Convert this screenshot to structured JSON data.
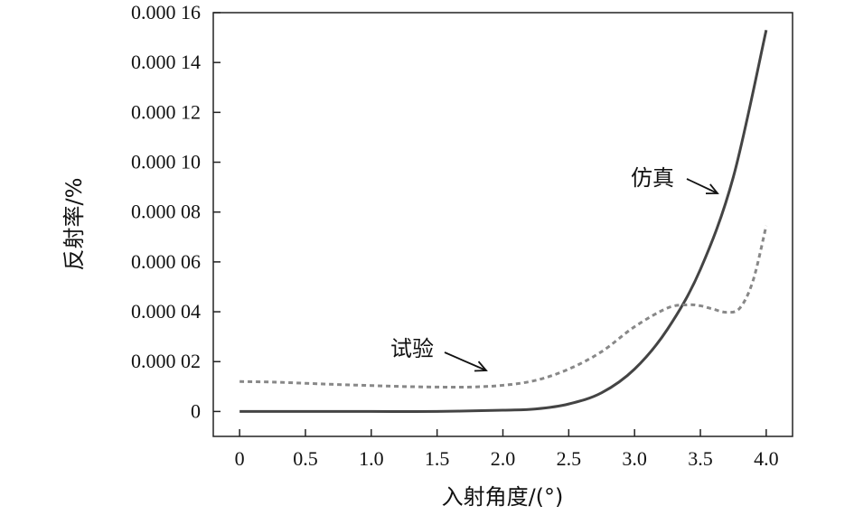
{
  "chart_data": {
    "type": "line",
    "xlabel": "入射角度/(°)",
    "ylabel": "反射率/%",
    "xlim": [
      -0.2,
      4.2
    ],
    "ylim": [
      -1e-05,
      0.00016
    ],
    "x_ticks": [
      0,
      0.5,
      1.0,
      1.5,
      2.0,
      2.5,
      3.0,
      3.5,
      4.0
    ],
    "x_tick_labels": [
      "0",
      "0.5",
      "1.0",
      "1.5",
      "2.0",
      "2.5",
      "3.0",
      "3.5",
      "4.0"
    ],
    "y_ticks": [
      0,
      2e-05,
      4e-05,
      6e-05,
      8e-05,
      0.0001,
      0.00012,
      0.00014,
      0.00016
    ],
    "y_tick_labels": [
      "0",
      "0.000 02",
      "0.000 04",
      "0.000 06",
      "0.000 08",
      "0.000 10",
      "0.000 12",
      "0.000 14",
      "0.000 16"
    ],
    "grid": false,
    "series": [
      {
        "name": "仿真",
        "style": "solid",
        "color": "#444444",
        "x": [
          0,
          0.5,
          1.0,
          1.5,
          2.0,
          2.25,
          2.5,
          2.75,
          3.0,
          3.25,
          3.5,
          3.75,
          4.0
        ],
        "y": [
          0,
          0,
          0,
          0,
          5e-07,
          1e-06,
          3e-06,
          7.5e-06,
          1.7e-05,
          3.3e-05,
          5.7e-05,
          9.4e-05,
          0.000153
        ]
      },
      {
        "name": "试验",
        "style": "dashed",
        "color": "#888888",
        "x": [
          0,
          0.25,
          0.5,
          0.75,
          1.0,
          1.25,
          1.5,
          1.75,
          2.0,
          2.25,
          2.5,
          2.75,
          3.0,
          3.25,
          3.4,
          3.5,
          3.6,
          3.7,
          3.8,
          3.9,
          4.0
        ],
        "y": [
          1.2e-05,
          1.18e-05,
          1.13e-05,
          1.08e-05,
          1.04e-05,
          1e-05,
          9.8e-06,
          9.8e-06,
          1.05e-05,
          1.25e-05,
          1.7e-05,
          2.4e-05,
          3.4e-05,
          4.15e-05,
          4.28e-05,
          4.24e-05,
          4.1e-05,
          3.98e-05,
          4.15e-05,
          5.25e-05,
          7.45e-05
        ]
      }
    ],
    "annotations": [
      {
        "text": "仿真",
        "series": 0,
        "points_to": [
          3.66,
          8.75e-05
        ]
      },
      {
        "text": "试验",
        "series": 1,
        "points_to": [
          1.9,
          1.58e-05
        ]
      }
    ]
  }
}
